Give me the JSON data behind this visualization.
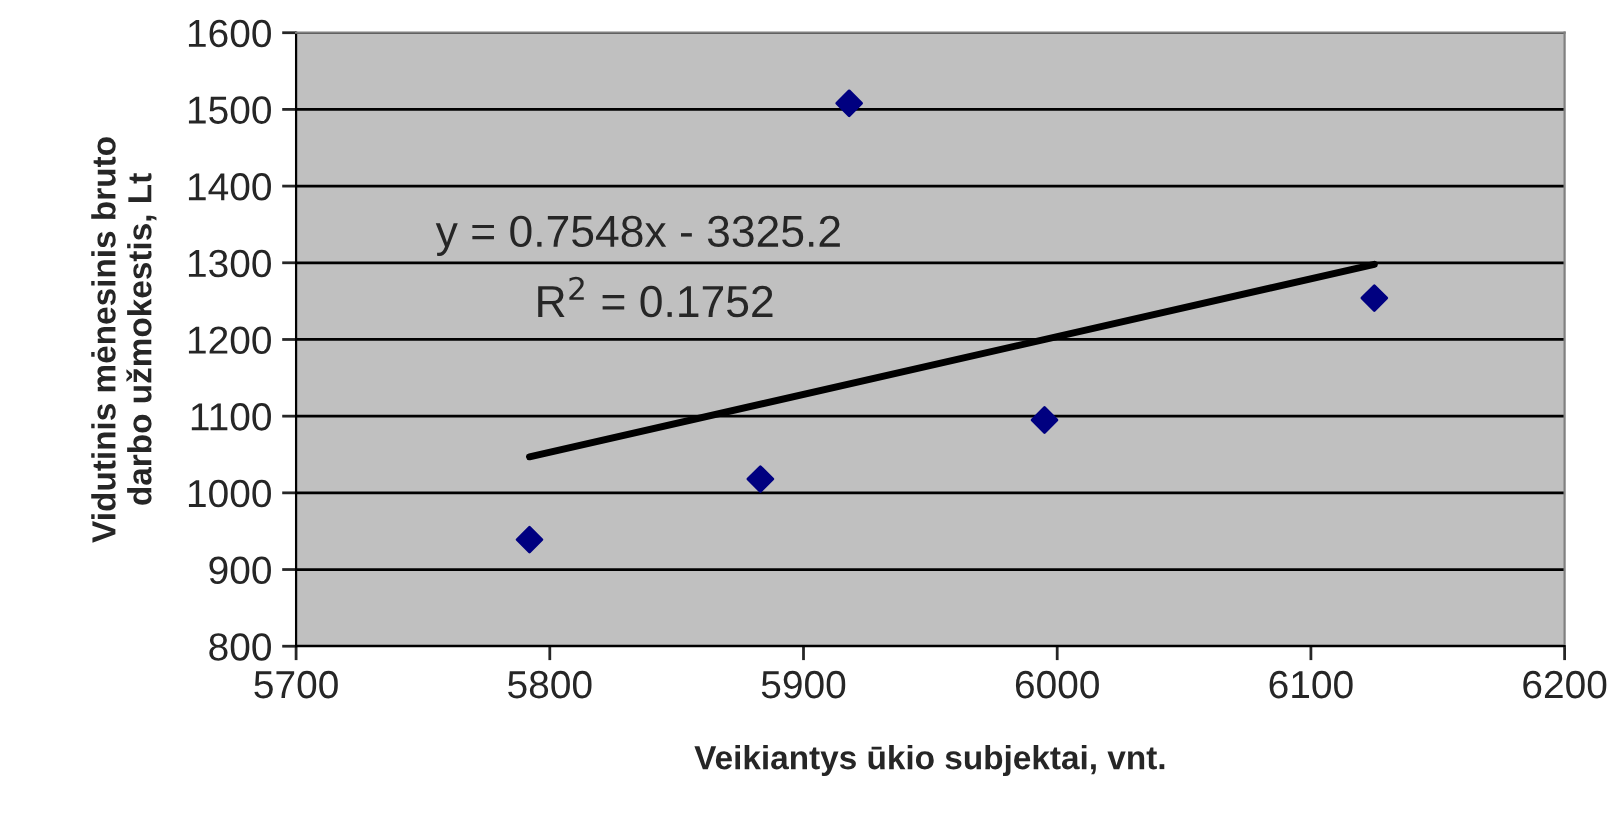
{
  "chart_data": {
    "type": "scatter",
    "xlabel": "Veikiantys ūkio subjektai, vnt.",
    "ylabel": "Vidutinis mėnesinis bruto\ndarbo užmokestis, Lt",
    "series": [
      {
        "color": "#000080",
        "marker": "diamond",
        "x": [
          5792,
          5883,
          5918,
          5995,
          6125
        ],
        "values": [
          939,
          1018,
          1508,
          1095,
          1254
        ]
      },
      {
        "type": "line",
        "color": "#000000",
        "line_style": "solid",
        "marker": "none",
        "x": [
          5792,
          6125
        ],
        "values": [
          1047,
          1298
        ]
      }
    ],
    "annotations": [
      "y = 0.7548x - 3325.2",
      "R$^{2}$ = 0.1752"
    ],
    "xlim": [
      5700,
      6200
    ],
    "xticks": [
      5700,
      5800,
      5900,
      6000,
      6100,
      6200
    ],
    "ylim": [
      800,
      1600
    ],
    "yticks": [
      800,
      900,
      1000,
      1100,
      1200,
      1300,
      1400,
      1500,
      1600
    ],
    "grid": "y",
    "legend": false
  }
}
